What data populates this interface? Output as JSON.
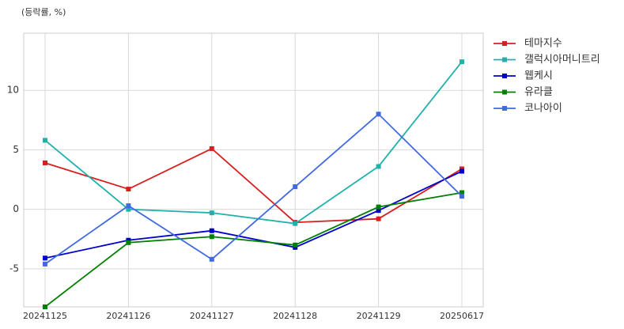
{
  "chart_data": {
    "type": "line",
    "y_label": "(등락률, %)",
    "categories": [
      "20241125",
      "20241126",
      "20241127",
      "20241128",
      "20241129",
      "20250617"
    ],
    "series": [
      {
        "name": "테마지수",
        "color": "#d62020",
        "values": [
          3.9,
          1.7,
          5.1,
          -1.1,
          -0.8,
          3.4
        ]
      },
      {
        "name": "갤럭시아머니트리",
        "color": "#20b2aa",
        "values": [
          5.8,
          0.0,
          -0.3,
          -1.2,
          3.6,
          12.4
        ]
      },
      {
        "name": "웹케시",
        "color": "#0000cd",
        "values": [
          -4.1,
          -2.6,
          -1.8,
          -3.2,
          -0.1,
          3.2
        ]
      },
      {
        "name": "유라클",
        "color": "#008000",
        "values": [
          -8.2,
          -2.8,
          -2.3,
          -3.0,
          0.2,
          1.4
        ]
      },
      {
        "name": "코나아이",
        "color": "#4169e1",
        "values": [
          -4.6,
          0.3,
          -4.2,
          1.9,
          8.0,
          1.1
        ]
      }
    ],
    "ylim": [
      -8.2,
      14.8
    ],
    "yticks": [
      -5,
      0,
      5,
      10
    ],
    "grid": true,
    "legend": "outside-right"
  }
}
